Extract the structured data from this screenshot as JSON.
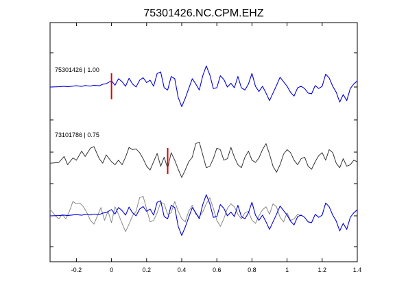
{
  "chart_data": {
    "type": "line",
    "title": "75301426.NC.CPM.EHZ",
    "xlabel": "",
    "ylabel": "",
    "xlim": [
      -0.35,
      1.4
    ],
    "xticks": [
      -0.2,
      0,
      0.2,
      0.4,
      0.6,
      0.8,
      1,
      1.2,
      1.4
    ],
    "xtick_labels": [
      "-0.2",
      "0",
      "0.2",
      "0.4",
      "0.6",
      "0.8",
      "1",
      "1.2",
      "1.4"
    ],
    "grid": false,
    "colors": {
      "blue": "#0000dd",
      "gray": "#333333",
      "overlay_gray": "#888888",
      "pick": "#dd0000"
    },
    "traces": [
      {
        "label": "75301426 | 1.00",
        "pick_time": 0.0
      },
      {
        "label": "73101786 | 0.75",
        "pick_time": 0.32
      }
    ],
    "series": [
      {
        "id": "trace-75301426",
        "color": "blue",
        "x": [
          -0.35,
          -0.3,
          -0.27,
          -0.25,
          -0.22,
          -0.2,
          -0.17,
          -0.15,
          -0.12,
          -0.1,
          -0.07,
          -0.05,
          -0.03,
          0.0,
          0.02,
          0.04,
          0.06,
          0.08,
          0.1,
          0.12,
          0.14,
          0.16,
          0.18,
          0.2,
          0.22,
          0.24,
          0.26,
          0.28,
          0.3,
          0.32,
          0.34,
          0.36,
          0.38,
          0.4,
          0.42,
          0.44,
          0.46,
          0.48,
          0.5,
          0.52,
          0.54,
          0.56,
          0.58,
          0.6,
          0.62,
          0.64,
          0.66,
          0.68,
          0.7,
          0.72,
          0.74,
          0.76,
          0.78,
          0.8,
          0.82,
          0.84,
          0.86,
          0.88,
          0.9,
          0.92,
          0.94,
          0.96,
          0.98,
          1.0,
          1.02,
          1.04,
          1.06,
          1.08,
          1.1,
          1.12,
          1.14,
          1.16,
          1.18,
          1.2,
          1.22,
          1.24,
          1.26,
          1.28,
          1.3,
          1.32,
          1.34,
          1.36,
          1.38,
          1.4
        ],
        "y": [
          0.0,
          0.02,
          0.05,
          0.02,
          0.06,
          0.08,
          0.04,
          0.1,
          0.06,
          0.12,
          0.08,
          0.18,
          0.22,
          0.42,
          0.12,
          0.55,
          0.35,
          0.05,
          0.58,
          0.2,
          0.0,
          0.45,
          0.62,
          0.3,
          0.45,
          0.05,
          0.9,
          1.0,
          -0.05,
          -0.2,
          0.7,
          0.55,
          -0.7,
          -1.3,
          -0.75,
          -0.1,
          0.55,
          0.2,
          -0.2,
          0.75,
          1.4,
          0.8,
          -0.1,
          -0.05,
          0.75,
          0.5,
          0.0,
          0.25,
          -0.05,
          0.7,
          -0.05,
          -0.2,
          0.2,
          0.9,
          0.05,
          -0.3,
          0.05,
          -0.4,
          -0.9,
          -0.4,
          0.1,
          0.65,
          0.35,
          0.05,
          -0.35,
          -0.6,
          -0.05,
          0.05,
          -0.1,
          -0.4,
          -0.45,
          0.1,
          -0.1,
          0.05,
          0.85,
          0.6,
          0.05,
          -0.35,
          -1.0,
          -0.5,
          -0.9,
          -0.1,
          0.2,
          0.4
        ]
      },
      {
        "id": "trace-73101786",
        "color": "gray",
        "x": [
          -0.35,
          -0.3,
          -0.27,
          -0.25,
          -0.22,
          -0.2,
          -0.17,
          -0.15,
          -0.12,
          -0.1,
          -0.07,
          -0.05,
          -0.03,
          0.0,
          0.02,
          0.04,
          0.06,
          0.08,
          0.1,
          0.12,
          0.14,
          0.16,
          0.18,
          0.2,
          0.22,
          0.24,
          0.26,
          0.28,
          0.3,
          0.32,
          0.34,
          0.36,
          0.38,
          0.4,
          0.42,
          0.44,
          0.46,
          0.48,
          0.5,
          0.52,
          0.54,
          0.56,
          0.58,
          0.6,
          0.62,
          0.64,
          0.66,
          0.68,
          0.7,
          0.72,
          0.74,
          0.76,
          0.78,
          0.8,
          0.82,
          0.84,
          0.86,
          0.88,
          0.9,
          0.92,
          0.94,
          0.96,
          0.98,
          1.0,
          1.02,
          1.04,
          1.06,
          1.08,
          1.1,
          1.12,
          1.14,
          1.16,
          1.18,
          1.2,
          1.22,
          1.24,
          1.26,
          1.28,
          1.3,
          1.32,
          1.34,
          1.36,
          1.38,
          1.4
        ],
        "y": [
          -0.1,
          -0.05,
          0.35,
          -0.2,
          0.25,
          0.1,
          0.7,
          0.35,
          0.9,
          1.0,
          0.2,
          -0.1,
          0.45,
          0.0,
          -0.2,
          0.1,
          -0.2,
          0.3,
          0.95,
          0.8,
          0.85,
          0.6,
          0.2,
          -0.3,
          -0.55,
          0.0,
          0.55,
          -0.3,
          0.3,
          -0.45,
          0.6,
          0.1,
          -0.5,
          -1.05,
          -0.55,
          0.0,
          0.3,
          1.2,
          1.3,
          0.45,
          -0.4,
          -0.3,
          0.2,
          0.9,
          0.8,
          0.1,
          0.2,
          0.95,
          0.3,
          -0.2,
          -0.4,
          0.3,
          0.7,
          0.1,
          -0.05,
          0.25,
          0.8,
          1.2,
          0.5,
          -0.3,
          -0.7,
          -0.2,
          0.5,
          0.8,
          0.6,
          0.1,
          -0.2,
          0.2,
          0.3,
          -0.3,
          -0.5,
          0.0,
          0.4,
          0.6,
          0.1,
          0.8,
          0.6,
          -0.1,
          -0.4,
          0.2,
          -0.3,
          -0.2,
          0.1,
          0.0
        ]
      }
    ]
  }
}
